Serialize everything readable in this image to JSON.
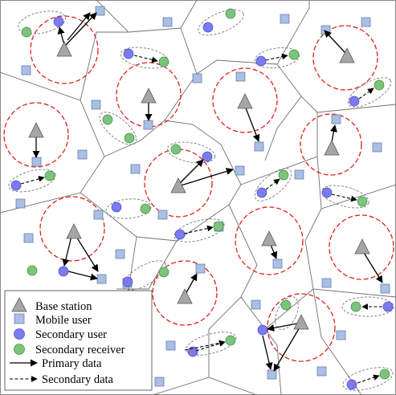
{
  "colors": {
    "base_station": "#a6a6a6",
    "mobile_user": "#a9bfe5",
    "secondary_user": "#7b7bf0",
    "secondary_receiver": "#7cc47c",
    "coverage_circle": "#e0201a",
    "cell_boundary": "#707070"
  },
  "legend": {
    "base_station": "Base station",
    "mobile_user": "Mobile user",
    "secondary_user": "Secondary user",
    "secondary_receiver": "Secondary receiver",
    "primary_data": "Primary data",
    "secondary_data": "Secondary data"
  }
}
